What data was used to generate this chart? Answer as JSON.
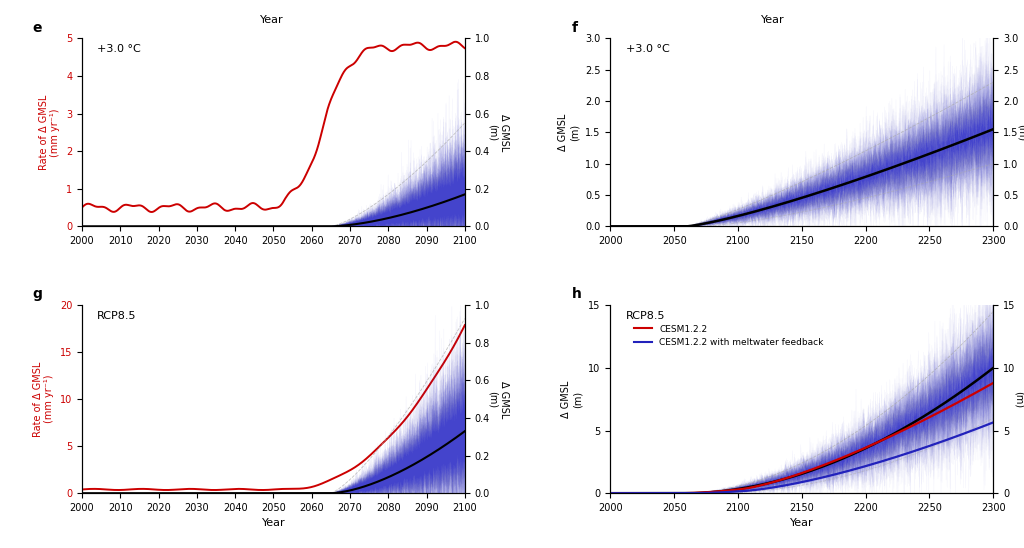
{
  "panels": {
    "e": {
      "label": "e",
      "scenario": "+3.0 °C",
      "xlim": [
        2000,
        2100
      ],
      "ylim_left": [
        0,
        5
      ],
      "ylim_right": [
        0,
        1
      ],
      "yticks_left": [
        0,
        1,
        2,
        3,
        4,
        5
      ],
      "yticks_right": [
        0,
        0.2,
        0.4,
        0.6,
        0.8,
        1.0
      ],
      "xticks": [
        2000,
        2010,
        2020,
        2030,
        2040,
        2050,
        2060,
        2070,
        2080,
        2090,
        2100
      ],
      "ylabel_left": "Rate of Δ GMSL\n(mm yr⁻¹)",
      "ylabel_right": "Δ GMSL\n(m)"
    },
    "f": {
      "label": "f",
      "scenario": "+3.0 °C",
      "xlim": [
        2000,
        2300
      ],
      "ylim_left": [
        0,
        3
      ],
      "ylim_right": [
        0,
        3
      ],
      "yticks_left": [
        0,
        0.5,
        1.0,
        1.5,
        2.0,
        2.5,
        3.0
      ],
      "yticks_right": [
        0,
        0.5,
        1.0,
        1.5,
        2.0,
        2.5,
        3.0
      ],
      "xticks": [
        2000,
        2050,
        2100,
        2150,
        2200,
        2250,
        2300
      ],
      "ylabel_left": "Δ GMSL\n(m)",
      "ylabel_right": "Δ GMSL\n(m)"
    },
    "g": {
      "label": "g",
      "scenario": "RCP8.5",
      "xlim": [
        2000,
        2100
      ],
      "ylim_left": [
        0,
        20
      ],
      "ylim_right": [
        0,
        1
      ],
      "yticks_left": [
        0,
        5,
        10,
        15,
        20
      ],
      "yticks_right": [
        0,
        0.2,
        0.4,
        0.6,
        0.8,
        1.0
      ],
      "xticks": [
        2000,
        2010,
        2020,
        2030,
        2040,
        2050,
        2060,
        2070,
        2080,
        2090,
        2100
      ],
      "ylabel_left": "Rate of Δ GMSL\n(mm yr⁻¹)",
      "ylabel_right": "Δ GMSL\n(m)"
    },
    "h": {
      "label": "h",
      "scenario": "RCP8.5",
      "xlim": [
        2000,
        2300
      ],
      "ylim_left": [
        0,
        15
      ],
      "ylim_right": [
        0,
        15
      ],
      "yticks_left": [
        0,
        5,
        10,
        15
      ],
      "yticks_right": [
        0,
        5,
        10,
        15
      ],
      "xticks": [
        2000,
        2050,
        2100,
        2150,
        2200,
        2250,
        2300
      ],
      "ylabel_left": "Δ GMSL\n(m)",
      "ylabel_right": "Δ GMSL\n(m)",
      "has_legend": true
    }
  },
  "colors": {
    "red": "#cc0000",
    "blue_dark": "#2222bb",
    "blue_ensemble": "#4444cc",
    "black": "#000000",
    "gray": "#999999"
  }
}
